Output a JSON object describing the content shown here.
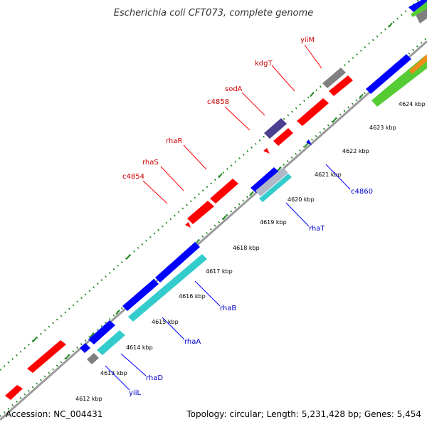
{
  "title": "Escherichia coli CFT073, complete genome",
  "footer": {
    "accession": "Accession: NC_004431",
    "stats": "Topology: circular; Length: 5,231,428 bp; Genes: 5,454"
  },
  "colors": {
    "forward_cds": "#ff0000",
    "reverse_cds": "#0000ff",
    "rna": "#808080",
    "other": "#4b3f8f",
    "blast_hit": "#33cccc",
    "gc_skew": "#22aa22",
    "backbone": "#9a9a9a",
    "forward_label": "#cc0000",
    "reverse_label": "#0000cc",
    "ticks": "#228822"
  },
  "kbp_ticks": [
    "4612 kbp",
    "4613 kbp",
    "4614 kbp",
    "4615 kbp",
    "4616 kbp",
    "4617 kbp",
    "4618 kbp",
    "4619 kbp",
    "4620 kbp",
    "4621 kbp",
    "4622 kbp",
    "4623 kbp",
    "4624 kbp"
  ],
  "gene_labels": {
    "forward": [
      "yiiM",
      "kdgT",
      "sodA",
      "c4858",
      "rhaR",
      "rhaS",
      "c4854"
    ],
    "reverse": [
      "c4860",
      "rhaT",
      "rhaB",
      "rhaA",
      "rhaD",
      "yiiL"
    ]
  }
}
